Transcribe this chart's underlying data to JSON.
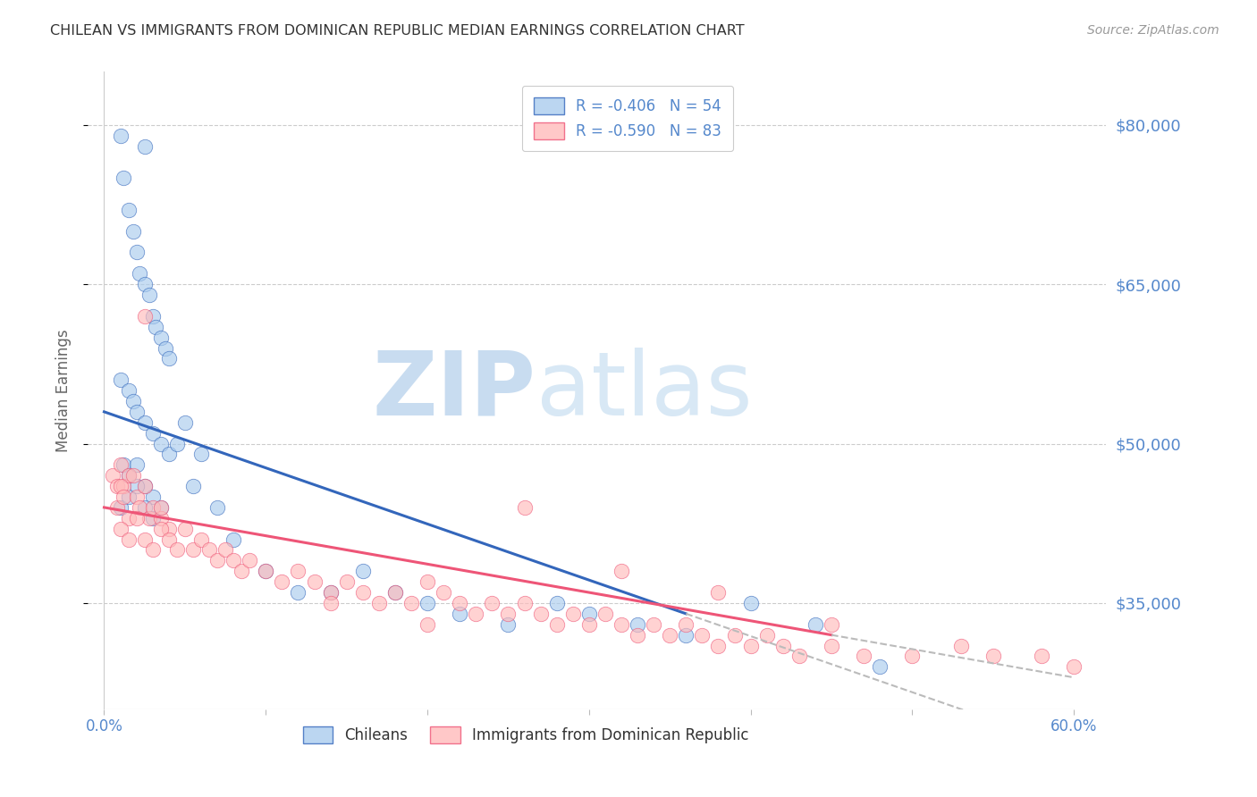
{
  "title": "CHILEAN VS IMMIGRANTS FROM DOMINICAN REPUBLIC MEDIAN EARNINGS CORRELATION CHART",
  "source": "Source: ZipAtlas.com",
  "xlabel_vals": [
    0.0,
    10.0,
    20.0,
    30.0,
    40.0,
    50.0,
    60.0
  ],
  "xlabel_labels": [
    "0.0%",
    "",
    "",
    "",
    "",
    "",
    "60.0%"
  ],
  "ylabel_ticks": [
    35000,
    50000,
    65000,
    80000
  ],
  "ylabel_labels": [
    "$35,000",
    "$50,000",
    "$65,000",
    "$80,000"
  ],
  "ylim": [
    25000,
    85000
  ],
  "xlim": [
    -1.0,
    62.0
  ],
  "legend_line1": "R = -0.406   N = 54",
  "legend_line2": "R = -0.590   N = 83",
  "legend_label1": "Chileans",
  "legend_label2": "Immigrants from Dominican Republic",
  "blue_color": "#AACCEE",
  "pink_color": "#FFBBBB",
  "line_blue": "#3366BB",
  "line_pink": "#EE5577",
  "watermark_zip": "ZIP",
  "watermark_atlas": "atlas",
  "blue_scatter_x": [
    1.0,
    2.5,
    1.2,
    1.5,
    1.8,
    2.0,
    2.2,
    2.5,
    2.8,
    3.0,
    3.2,
    3.5,
    3.8,
    4.0,
    1.0,
    1.5,
    1.8,
    2.0,
    2.5,
    3.0,
    3.5,
    4.0,
    4.5,
    5.0,
    1.2,
    1.5,
    2.0,
    2.5,
    3.0,
    1.0,
    1.5,
    2.0,
    2.5,
    3.0,
    3.5,
    5.5,
    6.0,
    7.0,
    8.0,
    10.0,
    12.0,
    14.0,
    16.0,
    18.0,
    20.0,
    22.0,
    25.0,
    28.0,
    30.0,
    33.0,
    36.0,
    40.0,
    44.0,
    48.0
  ],
  "blue_scatter_y": [
    79000,
    78000,
    75000,
    72000,
    70000,
    68000,
    66000,
    65000,
    64000,
    62000,
    61000,
    60000,
    59000,
    58000,
    56000,
    55000,
    54000,
    53000,
    52000,
    51000,
    50000,
    49000,
    50000,
    52000,
    48000,
    47000,
    48000,
    46000,
    45000,
    44000,
    45000,
    46000,
    44000,
    43000,
    44000,
    46000,
    49000,
    44000,
    41000,
    38000,
    36000,
    36000,
    38000,
    36000,
    35000,
    34000,
    33000,
    35000,
    34000,
    33000,
    32000,
    35000,
    33000,
    29000
  ],
  "pink_scatter_x": [
    0.5,
    0.8,
    1.0,
    1.2,
    1.5,
    0.8,
    1.0,
    1.2,
    1.5,
    1.8,
    2.0,
    2.2,
    2.5,
    2.8,
    3.0,
    3.5,
    4.0,
    1.0,
    1.5,
    2.0,
    2.5,
    3.0,
    3.5,
    4.0,
    4.5,
    5.0,
    5.5,
    6.0,
    6.5,
    7.0,
    7.5,
    8.0,
    8.5,
    9.0,
    10.0,
    11.0,
    12.0,
    13.0,
    14.0,
    15.0,
    16.0,
    17.0,
    18.0,
    19.0,
    20.0,
    21.0,
    22.0,
    23.0,
    24.0,
    25.0,
    26.0,
    27.0,
    28.0,
    29.0,
    30.0,
    31.0,
    32.0,
    33.0,
    34.0,
    35.0,
    36.0,
    37.0,
    38.0,
    39.0,
    40.0,
    41.0,
    42.0,
    43.0,
    45.0,
    47.0,
    50.0,
    53.0,
    55.0,
    58.0,
    60.0,
    2.5,
    3.5,
    14.0,
    20.0,
    26.0,
    32.0,
    38.0,
    45.0
  ],
  "pink_scatter_y": [
    47000,
    46000,
    48000,
    46000,
    47000,
    44000,
    46000,
    45000,
    43000,
    47000,
    45000,
    44000,
    46000,
    43000,
    44000,
    43000,
    42000,
    42000,
    41000,
    43000,
    41000,
    40000,
    42000,
    41000,
    40000,
    42000,
    40000,
    41000,
    40000,
    39000,
    40000,
    39000,
    38000,
    39000,
    38000,
    37000,
    38000,
    37000,
    36000,
    37000,
    36000,
    35000,
    36000,
    35000,
    37000,
    36000,
    35000,
    34000,
    35000,
    34000,
    35000,
    34000,
    33000,
    34000,
    33000,
    34000,
    33000,
    32000,
    33000,
    32000,
    33000,
    32000,
    31000,
    32000,
    31000,
    32000,
    31000,
    30000,
    31000,
    30000,
    30000,
    31000,
    30000,
    30000,
    29000,
    62000,
    44000,
    35000,
    33000,
    44000,
    38000,
    36000,
    33000
  ]
}
